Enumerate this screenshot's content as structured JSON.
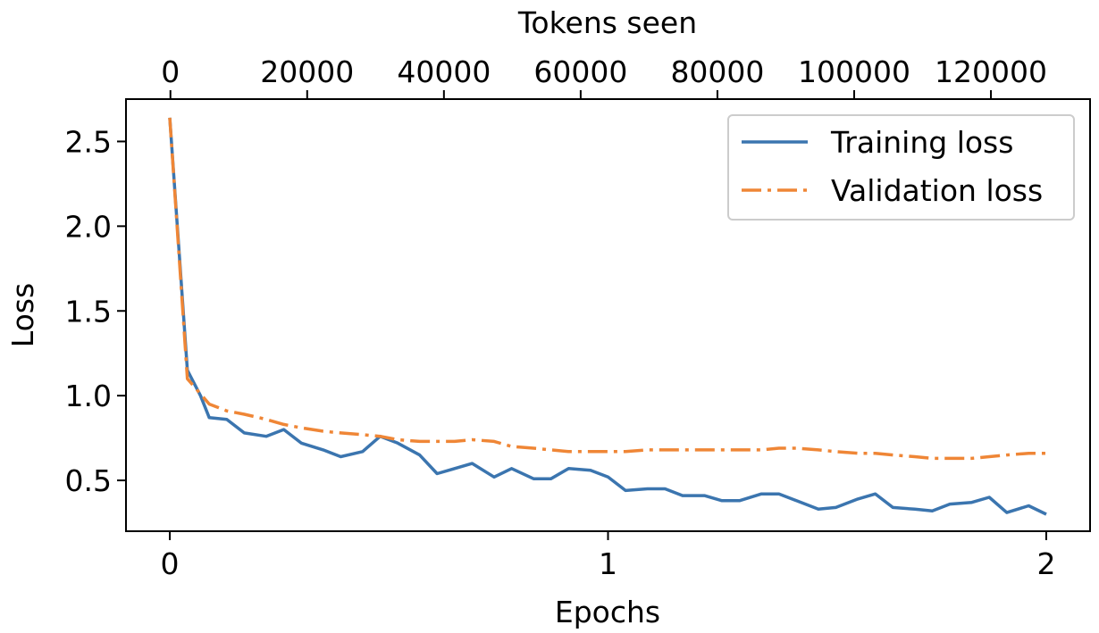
{
  "chart_data": {
    "type": "line",
    "xlabel": "Epochs",
    "ylabel": "Loss",
    "top_xlabel": "Tokens seen",
    "xlim": [
      -0.1,
      2.1
    ],
    "ylim": [
      0.2,
      2.75
    ],
    "top_xlim": [
      -6500,
      134500
    ],
    "x_ticks": [
      0,
      1,
      2
    ],
    "x_tick_labels": [
      "0",
      "1",
      "2"
    ],
    "y_ticks": [
      0.5,
      1.0,
      1.5,
      2.0,
      2.5
    ],
    "y_tick_labels": [
      "0.5",
      "1.0",
      "1.5",
      "2.0",
      "2.5"
    ],
    "top_ticks": [
      0,
      20000,
      40000,
      60000,
      80000,
      100000,
      120000
    ],
    "top_tick_labels": [
      "0",
      "20000",
      "40000",
      "60000",
      "80000",
      "100000",
      "120000"
    ],
    "grid": false,
    "legend_position": "top-right",
    "colors": {
      "training": "#3b75af",
      "validation": "#ef8636"
    },
    "series": [
      {
        "name": "Training loss",
        "style": "solid",
        "x": [
          0,
          0.04,
          0.07,
          0.09,
          0.13,
          0.17,
          0.22,
          0.26,
          0.3,
          0.35,
          0.39,
          0.44,
          0.48,
          0.52,
          0.57,
          0.61,
          0.65,
          0.69,
          0.74,
          0.78,
          0.83,
          0.87,
          0.91,
          0.96,
          1.0,
          1.04,
          1.09,
          1.13,
          1.17,
          1.22,
          1.26,
          1.3,
          1.35,
          1.39,
          1.43,
          1.48,
          1.52,
          1.57,
          1.61,
          1.65,
          1.7,
          1.74,
          1.78,
          1.83,
          1.87,
          1.91,
          1.96,
          2.0
        ],
        "y": [
          2.64,
          1.15,
          1.0,
          0.87,
          0.86,
          0.78,
          0.76,
          0.8,
          0.72,
          0.68,
          0.64,
          0.67,
          0.76,
          0.72,
          0.65,
          0.54,
          0.57,
          0.6,
          0.52,
          0.57,
          0.51,
          0.51,
          0.57,
          0.56,
          0.52,
          0.44,
          0.45,
          0.45,
          0.41,
          0.41,
          0.38,
          0.38,
          0.42,
          0.42,
          0.38,
          0.33,
          0.34,
          0.39,
          0.42,
          0.34,
          0.33,
          0.32,
          0.36,
          0.37,
          0.4,
          0.31,
          0.35,
          0.3
        ]
      },
      {
        "name": "Validation loss",
        "style": "dashdot",
        "x": [
          0,
          0.04,
          0.09,
          0.13,
          0.17,
          0.22,
          0.26,
          0.3,
          0.35,
          0.39,
          0.44,
          0.48,
          0.52,
          0.57,
          0.61,
          0.65,
          0.69,
          0.74,
          0.78,
          0.83,
          0.87,
          0.91,
          0.96,
          1.0,
          1.04,
          1.09,
          1.13,
          1.17,
          1.22,
          1.26,
          1.3,
          1.35,
          1.39,
          1.43,
          1.48,
          1.52,
          1.57,
          1.61,
          1.65,
          1.7,
          1.74,
          1.78,
          1.83,
          1.87,
          1.91,
          1.96,
          2.0
        ],
        "y": [
          2.64,
          1.1,
          0.95,
          0.91,
          0.89,
          0.86,
          0.83,
          0.81,
          0.79,
          0.78,
          0.77,
          0.76,
          0.74,
          0.73,
          0.73,
          0.73,
          0.74,
          0.73,
          0.7,
          0.69,
          0.68,
          0.67,
          0.67,
          0.67,
          0.67,
          0.68,
          0.68,
          0.68,
          0.68,
          0.68,
          0.68,
          0.68,
          0.69,
          0.69,
          0.68,
          0.67,
          0.66,
          0.66,
          0.65,
          0.64,
          0.63,
          0.63,
          0.63,
          0.64,
          0.65,
          0.66,
          0.66
        ]
      }
    ]
  }
}
